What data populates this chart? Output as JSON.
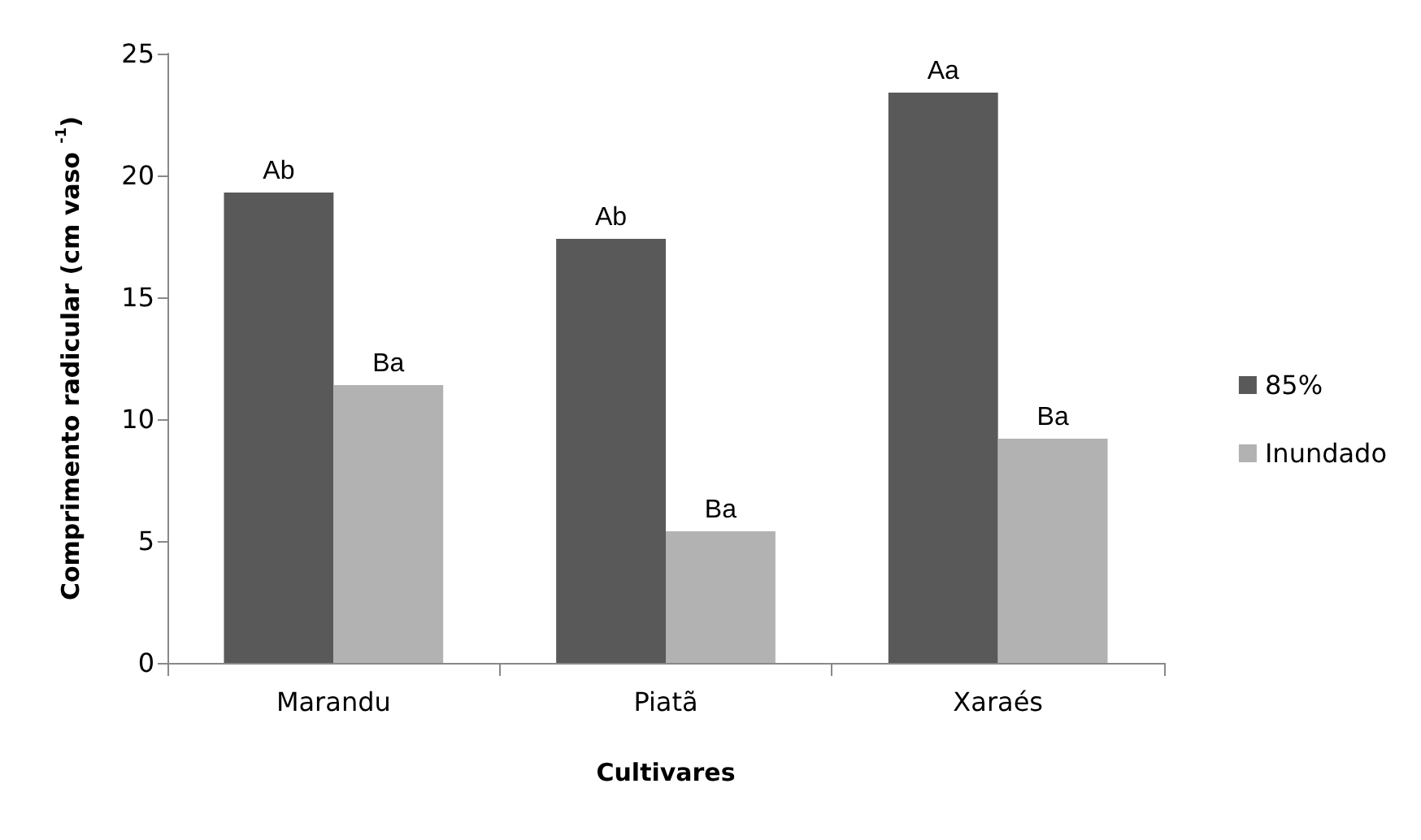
{
  "chart_data": {
    "type": "bar",
    "xlabel": "Cultivares",
    "ylabel": "Comprimento radicular (cm vaso $^{-1}$)",
    "categories": [
      "Marandu",
      "Piatã",
      "Xaraés"
    ],
    "series": [
      {
        "name": "85%",
        "color": "#595959",
        "values": [
          19.3,
          17.4,
          23.4
        ],
        "value_labels": [
          "Ab",
          "Ab",
          "Aa"
        ]
      },
      {
        "name": "Inundado",
        "color": "#b2b2b2",
        "values": [
          11.4,
          5.4,
          9.2
        ],
        "value_labels": [
          "Ba",
          "Ba",
          "Ba"
        ]
      }
    ],
    "ylim": [
      0,
      25
    ],
    "yticks": [
      0,
      5,
      10,
      15,
      20,
      25
    ],
    "grid": false,
    "legend": "right"
  }
}
